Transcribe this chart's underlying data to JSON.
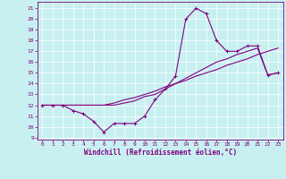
{
  "xlabel": "Windchill (Refroidissement éolien,°C)",
  "bg_color": "#c8f0f0",
  "line_color": "#800080",
  "x_ticks": [
    0,
    1,
    2,
    3,
    4,
    5,
    6,
    7,
    8,
    9,
    10,
    11,
    12,
    13,
    14,
    15,
    16,
    17,
    18,
    19,
    20,
    21,
    22,
    23
  ],
  "y_ticks": [
    9,
    10,
    11,
    12,
    13,
    14,
    15,
    16,
    17,
    18,
    19,
    20,
    21
  ],
  "ylim": [
    8.8,
    21.6
  ],
  "xlim": [
    -0.5,
    23.5
  ],
  "series1_x": [
    0,
    1,
    2,
    3,
    4,
    5,
    6,
    7,
    8,
    9,
    10,
    11,
    12,
    13,
    14,
    15,
    16,
    17,
    18,
    19,
    20,
    21,
    22,
    23
  ],
  "series1_y": [
    12.0,
    12.0,
    12.0,
    11.5,
    11.2,
    10.5,
    9.5,
    10.3,
    10.3,
    10.3,
    11.0,
    12.5,
    13.5,
    14.7,
    20.0,
    21.0,
    20.5,
    18.0,
    17.0,
    17.0,
    17.5,
    17.5,
    14.8,
    15.0
  ],
  "series2_x": [
    0,
    1,
    2,
    3,
    4,
    5,
    6,
    7,
    8,
    9,
    10,
    11,
    12,
    13,
    14,
    15,
    16,
    17,
    18,
    19,
    20,
    21,
    22,
    23
  ],
  "series2_y": [
    12.0,
    12.0,
    12.0,
    12.0,
    12.0,
    12.0,
    12.0,
    12.2,
    12.5,
    12.7,
    13.0,
    13.3,
    13.7,
    14.0,
    14.3,
    14.7,
    15.0,
    15.3,
    15.7,
    16.0,
    16.3,
    16.7,
    17.0,
    17.3
  ],
  "series3_x": [
    0,
    1,
    2,
    3,
    4,
    5,
    6,
    7,
    8,
    9,
    10,
    11,
    12,
    13,
    14,
    15,
    16,
    17,
    18,
    19,
    20,
    21,
    22,
    23
  ],
  "series3_y": [
    12.0,
    12.0,
    12.0,
    12.0,
    12.0,
    12.0,
    12.0,
    12.0,
    12.2,
    12.4,
    12.8,
    13.0,
    13.5,
    14.0,
    14.5,
    15.0,
    15.5,
    16.0,
    16.3,
    16.7,
    17.0,
    17.3,
    14.8,
    15.0
  ]
}
